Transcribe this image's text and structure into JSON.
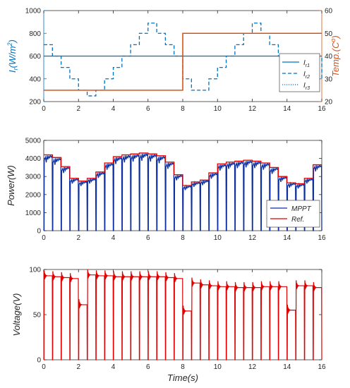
{
  "chart_data": [
    {
      "type": "line",
      "xlabel": "",
      "ylabel": "I_r(W/m^2)",
      "ylabel_parts": {
        "main": "I",
        "sub": "r",
        "rest": "(W/m",
        "sup": "2",
        "tail": ")"
      },
      "y2label": "Temp.(C°)",
      "y2label_parts": {
        "main": "Temp.(C",
        "sup": "o",
        "tail": ")"
      },
      "xlim": [
        0,
        16
      ],
      "ylim": [
        200,
        1000
      ],
      "y2lim": [
        20,
        60
      ],
      "xticks": [
        "0",
        "2",
        "4",
        "6",
        "8",
        "10",
        "12",
        "14",
        "16"
      ],
      "yticks": [
        "200",
        "400",
        "600",
        "800",
        "1000"
      ],
      "y2ticks": [
        "20",
        "30",
        "40",
        "50",
        "60"
      ],
      "left_axis_color": "#0072BD",
      "right_axis_color": "#D95319",
      "legend": {
        "placement": "inside-right",
        "entries": [
          {
            "main": "I",
            "sub": "r1",
            "style": "solid"
          },
          {
            "main": "I",
            "sub": "r2",
            "style": "dashed"
          },
          {
            "main": "I",
            "sub": "r3",
            "style": "dotted"
          }
        ]
      },
      "series": [
        {
          "name": "I_r1",
          "axis": "left",
          "color": "#0072BD",
          "style": "solid",
          "x": [
            0,
            16
          ],
          "y": [
            600,
            600
          ]
        },
        {
          "name": "I_r2",
          "axis": "left",
          "color": "#0072BD",
          "style": "dashed",
          "step": true,
          "x": [
            0,
            0.5,
            1,
            1.5,
            2,
            2.5,
            3,
            3.5,
            4,
            4.5,
            5,
            5.5,
            6,
            6.5,
            7,
            7.5,
            8,
            8.5,
            9,
            9.5,
            10,
            10.5,
            11,
            11.5,
            12,
            12.5,
            13,
            13.5,
            14,
            14.5,
            15,
            15.5,
            16
          ],
          "y": [
            700,
            600,
            500,
            400,
            300,
            250,
            300,
            400,
            500,
            600,
            700,
            800,
            890,
            800,
            700,
            600,
            400,
            300,
            300,
            400,
            500,
            600,
            700,
            800,
            890,
            800,
            700,
            600,
            500,
            400,
            300,
            400,
            600
          ]
        },
        {
          "name": "Temp",
          "axis": "right",
          "color": "#D95319",
          "style": "solid",
          "step": true,
          "x": [
            0,
            8,
            16
          ],
          "y": [
            25,
            50,
            50
          ]
        }
      ]
    },
    {
      "type": "line",
      "xlabel": "",
      "ylabel": "Power(W)",
      "xlim": [
        0,
        16
      ],
      "ylim": [
        0,
        5000
      ],
      "xticks": [
        "0",
        "2",
        "4",
        "6",
        "8",
        "10",
        "12",
        "14",
        "16"
      ],
      "yticks": [
        "0",
        "1000",
        "2000",
        "3000",
        "4000",
        "5000"
      ],
      "legend": {
        "placement": "inside-right",
        "entries": [
          {
            "label": "MPPT",
            "color": "#0D2FA0"
          },
          {
            "label": "Ref.",
            "color": "#E00000"
          }
        ]
      },
      "series": [
        {
          "name": "MPPT",
          "color": "#0D2FA0",
          "note": "drops to 0 at each 0.5 s step, then settles near Ref."
        },
        {
          "name": "Ref.",
          "color": "#E00000",
          "step": true,
          "x": [
            0,
            0.5,
            1,
            1.5,
            2,
            2.5,
            3,
            3.5,
            4,
            4.5,
            5,
            5.5,
            6,
            6.5,
            7,
            7.5,
            8,
            8.5,
            9,
            9.5,
            10,
            10.5,
            11,
            11.5,
            12,
            12.5,
            13,
            13.5,
            14,
            14.5,
            15,
            15.5,
            16
          ],
          "y": [
            4200,
            4050,
            3550,
            2900,
            2750,
            2900,
            3250,
            3750,
            4100,
            4200,
            4250,
            4300,
            4250,
            4150,
            3800,
            3100,
            2500,
            2700,
            2800,
            3200,
            3700,
            3800,
            3850,
            3900,
            3850,
            3750,
            3500,
            3000,
            2650,
            2600,
            2900,
            3650,
            3650
          ]
        }
      ]
    },
    {
      "type": "line",
      "xlabel": "Time(s)",
      "ylabel": "Voltage(V)",
      "xlim": [
        0,
        16
      ],
      "ylim": [
        0,
        100
      ],
      "xticks": [
        "0",
        "2",
        "4",
        "6",
        "8",
        "10",
        "12",
        "14",
        "16"
      ],
      "yticks": [
        "0",
        "50",
        "100"
      ],
      "series": [
        {
          "name": "Voltage",
          "color": "#E00000",
          "step": true,
          "x": [
            0,
            0.5,
            1,
            1.5,
            2,
            2.5,
            3,
            3.5,
            4,
            4.5,
            5,
            5.5,
            6,
            6.5,
            7,
            7.5,
            8,
            8.5,
            9,
            9.5,
            10,
            10.5,
            11,
            11.5,
            12,
            12.5,
            13,
            13.5,
            14,
            14.5,
            15,
            15.5,
            16
          ],
          "y": [
            93,
            92,
            91,
            90,
            61,
            94,
            93,
            93,
            92,
            92,
            92,
            92,
            92,
            92,
            91,
            90,
            54,
            85,
            83,
            82,
            81,
            81,
            80,
            80,
            80,
            81,
            81,
            81,
            55,
            82,
            82,
            80,
            80
          ]
        }
      ]
    }
  ]
}
